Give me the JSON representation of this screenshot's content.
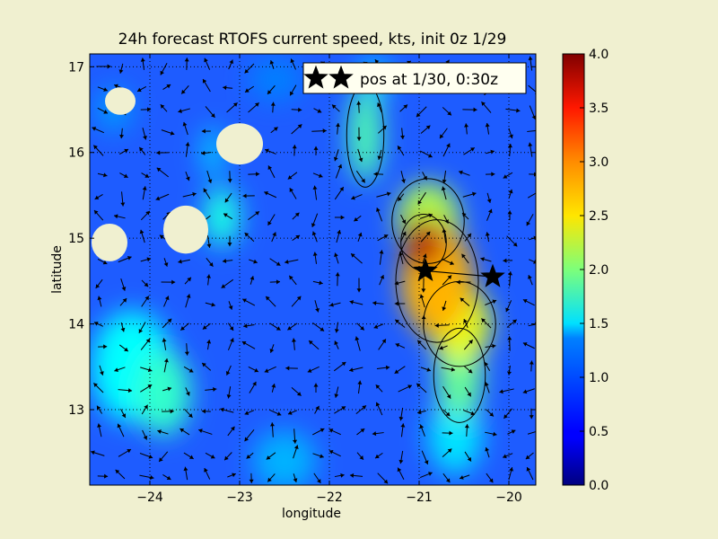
{
  "chart_data": {
    "type": "heatmap",
    "title": "24h forecast RTOFS current speed, kts, init 0z 1/29",
    "xlabel": "longitude",
    "ylabel": "latitude",
    "xlim": [
      -24.67,
      -19.7
    ],
    "ylim": [
      12.12,
      17.15
    ],
    "x_ticks": [
      -24,
      -23,
      -22,
      -21,
      -20
    ],
    "x_tick_labels": [
      "−24",
      "−23",
      "−22",
      "−21",
      "−20"
    ],
    "y_ticks": [
      13,
      14,
      15,
      16,
      17
    ],
    "y_tick_labels": [
      "13",
      "14",
      "15",
      "16",
      "17"
    ],
    "grid": true,
    "colorbar": {
      "min": 0.0,
      "max": 4.0,
      "ticks": [
        0.0,
        0.5,
        1.0,
        1.5,
        2.0,
        2.5,
        3.0,
        3.5,
        4.0
      ],
      "tick_labels": [
        "0.0",
        "0.5",
        "1.0",
        "1.5",
        "2.0",
        "2.5",
        "3.0",
        "3.5",
        "4.0"
      ],
      "colormap": "jet"
    },
    "speed_features": [
      {
        "lon": -20.95,
        "lat": 14.95,
        "value": 3.8,
        "rx": 0.22,
        "ry": 0.3
      },
      {
        "lon": -20.8,
        "lat": 14.5,
        "value": 2.8,
        "rx": 0.4,
        "ry": 0.65
      },
      {
        "lon": -20.55,
        "lat": 14.0,
        "value": 2.4,
        "rx": 0.35,
        "ry": 0.45
      },
      {
        "lon": -20.9,
        "lat": 15.2,
        "value": 2.2,
        "rx": 0.35,
        "ry": 0.45
      },
      {
        "lon": -20.55,
        "lat": 13.4,
        "value": 1.9,
        "rx": 0.25,
        "ry": 0.5
      },
      {
        "lon": -20.6,
        "lat": 12.7,
        "value": 1.4,
        "rx": 0.3,
        "ry": 0.45
      },
      {
        "lon": -21.6,
        "lat": 16.2,
        "value": 1.8,
        "rx": 0.18,
        "ry": 0.55
      },
      {
        "lon": -21.5,
        "lat": 16.85,
        "value": 1.3,
        "rx": 0.18,
        "ry": 0.25
      },
      {
        "lon": -24.2,
        "lat": 13.5,
        "value": 1.5,
        "rx": 0.45,
        "ry": 0.65
      },
      {
        "lon": -23.85,
        "lat": 13.2,
        "value": 1.7,
        "rx": 0.3,
        "ry": 0.5
      },
      {
        "lon": -23.2,
        "lat": 15.25,
        "value": 1.6,
        "rx": 0.2,
        "ry": 0.35
      },
      {
        "lon": -23.3,
        "lat": 16.0,
        "value": 1.3,
        "rx": 0.12,
        "ry": 0.3
      },
      {
        "lon": -24.4,
        "lat": 16.5,
        "value": 1.1,
        "rx": 0.2,
        "ry": 0.25
      },
      {
        "lon": -22.5,
        "lat": 12.4,
        "value": 1.2,
        "rx": 0.35,
        "ry": 0.35
      },
      {
        "lon": -22.6,
        "lat": 16.85,
        "value": 1.0,
        "rx": 0.3,
        "ry": 0.25
      }
    ],
    "islands": [
      {
        "lon": -24.33,
        "lat": 16.6,
        "rx": 0.17,
        "ry": 0.16
      },
      {
        "lon": -23.0,
        "lat": 16.1,
        "rx": 0.26,
        "ry": 0.24
      },
      {
        "lon": -23.6,
        "lat": 15.1,
        "rx": 0.25,
        "ry": 0.28
      },
      {
        "lon": -24.45,
        "lat": 14.95,
        "rx": 0.2,
        "ry": 0.22
      }
    ],
    "track": [
      {
        "lon": -20.93,
        "lat": 14.62
      },
      {
        "lon": -20.18,
        "lat": 14.55
      }
    ],
    "legend": {
      "label": "pos at 1/30, 0:30z",
      "placement": "top-right"
    }
  }
}
